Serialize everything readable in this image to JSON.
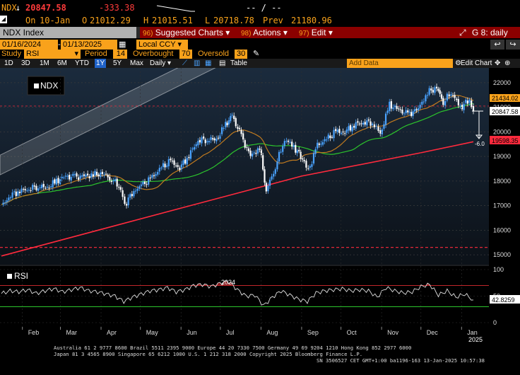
{
  "quote": {
    "ticker": "NDX",
    "last": "20847.58",
    "change": "-333.38",
    "on_label": "On",
    "date": "10-Jan",
    "open_label": "O",
    "open": "21012.29",
    "high_label": "H",
    "high": "21015.51",
    "low_label": "L",
    "low": "20718.78",
    "prev_label": "Prev",
    "prev": "21180.96",
    "bid_ask": "-- / --"
  },
  "menubar": {
    "security": "NDX Index",
    "suggested_num": "96)",
    "suggested": "Suggested Charts",
    "actions_num": "98)",
    "actions": "Actions",
    "edit_num": "97)",
    "edit": "Edit",
    "function": "G 8: daily"
  },
  "daterange": {
    "start": "01/16/2024",
    "end": "01/13/2025",
    "currency": "Local CCY"
  },
  "study": {
    "study_label": "Study",
    "study": "RSI",
    "period_label": "Period",
    "period": "14",
    "overbought_label": "Overbought",
    "overbought": "70",
    "oversold_label": "Oversold",
    "oversold": "30"
  },
  "toolbar": {
    "timeframes": [
      "1D",
      "3D",
      "1M",
      "6M",
      "YTD",
      "1Y",
      "5Y",
      "Max"
    ],
    "selected": "1Y",
    "frequency": "Daily",
    "table": "Table",
    "add_data": "Add Data",
    "edit_chart": "Edit Chart"
  },
  "colors": {
    "amber": "#f9a21b",
    "up_candle": "#4aa3ff",
    "down_candle": "#ffffff",
    "ma_short": "#c07a1f",
    "ma_mid": "#2cc42c",
    "ma_long": "#ff2a3d",
    "rsi_line": "#e0e0e0"
  },
  "chart_data": {
    "type": "line",
    "title": "NDX",
    "legend": "NDX",
    "y_ticks": [
      15000,
      16000,
      17000,
      18000,
      19000,
      20000,
      21000,
      22000
    ],
    "ylim": [
      14600,
      22600
    ],
    "x_months": [
      "Feb",
      "Mar",
      "Apr",
      "May",
      "Jun",
      "Jul",
      "Aug",
      "Sep",
      "Oct",
      "Nov",
      "Dec",
      "Jan"
    ],
    "x_year_labels": [
      "2024",
      "2025"
    ],
    "price_labels": {
      "ma_short_last": "21434.02",
      "last": "20847.58",
      "ma_long_last": "19598.35",
      "change_pct": "-6.0"
    },
    "price_series": [
      {
        "date": "2024-01-16",
        "close": 16980
      },
      {
        "date": "2024-01-23",
        "close": 17430
      },
      {
        "date": "2024-01-30",
        "close": 17600
      },
      {
        "date": "2024-02-06",
        "close": 17680
      },
      {
        "date": "2024-02-13",
        "close": 17800
      },
      {
        "date": "2024-02-20",
        "close": 17720
      },
      {
        "date": "2024-02-27",
        "close": 18000
      },
      {
        "date": "2024-03-05",
        "close": 18180
      },
      {
        "date": "2024-03-12",
        "close": 18150
      },
      {
        "date": "2024-03-19",
        "close": 18200
      },
      {
        "date": "2024-03-26",
        "close": 18250
      },
      {
        "date": "2024-04-02",
        "close": 18300
      },
      {
        "date": "2024-04-09",
        "close": 18100
      },
      {
        "date": "2024-04-16",
        "close": 17700
      },
      {
        "date": "2024-04-19",
        "close": 17040
      },
      {
        "date": "2024-04-26",
        "close": 17600
      },
      {
        "date": "2024-05-03",
        "close": 17850
      },
      {
        "date": "2024-05-10",
        "close": 18150
      },
      {
        "date": "2024-05-17",
        "close": 18550
      },
      {
        "date": "2024-05-24",
        "close": 18800
      },
      {
        "date": "2024-05-31",
        "close": 18540
      },
      {
        "date": "2024-06-07",
        "close": 19050
      },
      {
        "date": "2024-06-14",
        "close": 19650
      },
      {
        "date": "2024-06-21",
        "close": 19700
      },
      {
        "date": "2024-06-28",
        "close": 19680
      },
      {
        "date": "2024-07-05",
        "close": 20300
      },
      {
        "date": "2024-07-10",
        "close": 20660
      },
      {
        "date": "2024-07-17",
        "close": 19800
      },
      {
        "date": "2024-07-24",
        "close": 19000
      },
      {
        "date": "2024-07-31",
        "close": 19360
      },
      {
        "date": "2024-08-05",
        "close": 17600
      },
      {
        "date": "2024-08-12",
        "close": 18600
      },
      {
        "date": "2024-08-19",
        "close": 19700
      },
      {
        "date": "2024-08-26",
        "close": 19400
      },
      {
        "date": "2024-09-03",
        "close": 18800
      },
      {
        "date": "2024-09-06",
        "close": 18400
      },
      {
        "date": "2024-09-13",
        "close": 19450
      },
      {
        "date": "2024-09-20",
        "close": 19700
      },
      {
        "date": "2024-09-27",
        "close": 20000
      },
      {
        "date": "2024-10-04",
        "close": 20000
      },
      {
        "date": "2024-10-11",
        "close": 20300
      },
      {
        "date": "2024-10-18",
        "close": 20380
      },
      {
        "date": "2024-10-25",
        "close": 20400
      },
      {
        "date": "2024-10-31",
        "close": 19900
      },
      {
        "date": "2024-11-07",
        "close": 21100
      },
      {
        "date": "2024-11-14",
        "close": 20900
      },
      {
        "date": "2024-11-21",
        "close": 20700
      },
      {
        "date": "2024-11-29",
        "close": 20930
      },
      {
        "date": "2024-12-06",
        "close": 21600
      },
      {
        "date": "2024-12-13",
        "close": 21800
      },
      {
        "date": "2024-12-18",
        "close": 21200
      },
      {
        "date": "2024-12-24",
        "close": 21600
      },
      {
        "date": "2024-12-31",
        "close": 21000
      },
      {
        "date": "2025-01-07",
        "close": 21300
      },
      {
        "date": "2025-01-10",
        "close": 20848
      }
    ],
    "rsi": {
      "label": "RSI",
      "y_ticks": [
        0,
        50,
        100
      ],
      "levels": [
        30,
        70
      ],
      "last": "42.8259",
      "values": [
        55,
        60,
        58,
        62,
        55,
        60,
        64,
        58,
        62,
        66,
        60,
        58,
        54,
        50,
        40,
        48,
        54,
        60,
        62,
        66,
        58,
        62,
        70,
        72,
        68,
        74,
        78,
        62,
        50,
        52,
        32,
        48,
        60,
        52,
        44,
        40,
        56,
        60,
        62,
        64,
        60,
        62,
        60,
        48,
        66,
        60,
        56,
        58,
        68,
        72,
        52,
        60,
        48,
        54,
        42.8
      ]
    }
  },
  "footer": {
    "line1": "Australia 61 2 9777 8600 Brazil 5511 2395 9000 Europe 44 20 7330 7500 Germany 49 69 9204 1210 Hong Kong 852 2977 6000",
    "line2": "Japan 81 3 4565 8900       Singapore 65 6212 1000       U.S. 1 212 318 2000             Copyright 2025 Bloomberg Finance L.P.",
    "line3": "SN 3506527 CET  GMT+1:00 ba1196-163 13-Jan-2025 10:57:38"
  }
}
